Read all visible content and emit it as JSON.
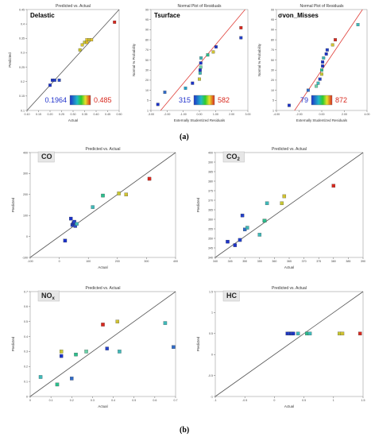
{
  "captions": {
    "a": "(a)",
    "b": "(b)"
  },
  "chart_data": [
    {
      "id": "delastic",
      "type": "scatter",
      "title": "Predicted vs. Actual",
      "xlabel": "Actual",
      "ylabel": "Predicted",
      "label": "Delastic",
      "xlim": [
        0.1,
        0.5
      ],
      "ylim": [
        0.1,
        0.5
      ],
      "xticks": [
        "0.10",
        "0.15",
        "0.20",
        "0.25",
        "0.30",
        "0.35",
        "0.40",
        "0.45",
        "0.50"
      ],
      "yticks": [
        "0.1",
        "0.15",
        "0.2",
        "0.25",
        "0.3",
        "0.35",
        "0.4",
        "0.45"
      ],
      "line": [
        [
          0.1,
          0.1
        ],
        [
          0.5,
          0.5
        ]
      ],
      "colorbar": {
        "min": "0.1964",
        "max": "0.485"
      },
      "x": [
        0.2,
        0.21,
        0.22,
        0.24,
        0.33,
        0.34,
        0.35,
        0.36,
        0.36,
        0.37,
        0.38,
        0.48
      ],
      "y": [
        0.2,
        0.22,
        0.22,
        0.22,
        0.34,
        0.36,
        0.37,
        0.38,
        0.37,
        0.38,
        0.38,
        0.45
      ],
      "c": [
        "#1c33c8",
        "#1c33c8",
        "#2441c8",
        "#2b49c8",
        "#c7c22e",
        "#d8c62c",
        "#c9c832",
        "#e3c72a",
        "#d8b82a",
        "#ccc132",
        "#e0c432",
        "#d8281e"
      ]
    },
    {
      "id": "tsurface",
      "type": "scatter",
      "title": "Normal Plot of Residuals",
      "xlabel": "Externally Studentized Residuals",
      "ylabel": "Normal % Probability",
      "label": "Tsurface",
      "xlim": [
        -3.5,
        3.5
      ],
      "ylim": [
        0,
        100
      ],
      "xticks": [
        "-3.00",
        "-2.00",
        "-1.00",
        "0.00",
        "1.00",
        "2.00",
        "3.00"
      ],
      "yticks": [
        "1",
        "5",
        "10",
        "20",
        "30",
        "50",
        "70",
        "80",
        "90",
        "95",
        "99"
      ],
      "line": [
        [
          -2.8,
          0
        ],
        [
          3.3,
          100
        ]
      ],
      "colorbar": {
        "min": "315",
        "max": "582"
      },
      "x": [
        -3.0,
        -2.5,
        -1.0,
        -0.5,
        0.0,
        0.05,
        0.05,
        0.1,
        0.1,
        0.12,
        0.6,
        1.0,
        1.2,
        3.0,
        3.0
      ],
      "y": [
        6,
        18,
        22,
        27,
        31,
        37,
        40,
        43,
        47,
        52,
        55,
        58,
        63,
        72,
        82
      ],
      "c": [
        "#1c33c8",
        "#2f6bc8",
        "#21a0c8",
        "#1c33c8",
        "#c8c832",
        "#3fb9b9",
        "#1c33c8",
        "#6bd1a8",
        "#1c33c8",
        "#3fb9b9",
        "#2dbd8d",
        "#d0c232",
        "#1c33c8",
        "#2441c8",
        "#d8281e"
      ]
    },
    {
      "id": "vonmises",
      "type": "scatter",
      "title": "Normal Plot of Residuals",
      "xlabel": "Externally Studentized Residuals",
      "ylabel": "Normal % Probability",
      "label": "σvon_Misses",
      "xlim": [
        -5,
        5
      ],
      "ylim": [
        0,
        100
      ],
      "xticks": [
        "-4.00",
        "-2.00",
        "0.00",
        "2.00",
        "4.00"
      ],
      "yticks": [
        "1",
        "5",
        "10",
        "20",
        "30",
        "50",
        "70",
        "80",
        "90",
        "95",
        "99"
      ],
      "line": [
        [
          -3.0,
          0
        ],
        [
          4.5,
          100
        ]
      ],
      "colorbar": {
        "min": "79",
        "max": "872"
      },
      "x": [
        -3.6,
        -1.5,
        -0.6,
        -0.4,
        -0.2,
        0.0,
        0.0,
        0.1,
        0.1,
        0.2,
        0.5,
        0.6,
        1.2,
        1.5,
        4.0
      ],
      "y": [
        5,
        20,
        24,
        27,
        31,
        36,
        40,
        44,
        48,
        52,
        56,
        60,
        65,
        70,
        85
      ],
      "c": [
        "#1c33c8",
        "#2f6bc8",
        "#6bd1a8",
        "#3fb9b9",
        "#2441c8",
        "#c8c832",
        "#2dbd8d",
        "#1c33c8",
        "#1c33c8",
        "#3fb9b9",
        "#1c33c8",
        "#2441c8",
        "#d0c232",
        "#d8281e",
        "#3fb9b9"
      ]
    },
    {
      "id": "co",
      "type": "scatter",
      "title": "Predicted vs. Actual",
      "xlabel": "Actual",
      "ylabel": "Predicted",
      "label": "CO",
      "xlim": [
        -100,
        400
      ],
      "ylim": [
        -100,
        400
      ],
      "xticks": [
        "-100",
        "0",
        "100",
        "200",
        "300",
        "400"
      ],
      "yticks": [
        "-100",
        "0",
        "100",
        "200",
        "300",
        "400"
      ],
      "line": [
        [
          -100,
          -100
        ],
        [
          400,
          400
        ]
      ],
      "x": [
        20,
        40,
        45,
        48,
        50,
        52,
        55,
        60,
        115,
        150,
        205,
        230,
        310
      ],
      "y": [
        -20,
        85,
        55,
        60,
        65,
        70,
        50,
        60,
        140,
        195,
        205,
        200,
        275
      ],
      "c": [
        "#1c33c8",
        "#1c33c8",
        "#2441c8",
        "#2441c8",
        "#1c33c8",
        "#2441c8",
        "#2b49c8",
        "#3fb9b9",
        "#3fb9b9",
        "#2dbd8d",
        "#c8c832",
        "#d0c232",
        "#d8281e"
      ]
    },
    {
      "id": "co2",
      "type": "scatter",
      "title": "Predicted vs. Actual",
      "xlabel": "Actual",
      "ylabel": "Predicted",
      "label": "CO2",
      "xlim": [
        340,
        400
      ],
      "ylim": [
        340,
        400
      ],
      "xticks": [
        "340",
        "345",
        "350",
        "355",
        "360",
        "365",
        "370",
        "375",
        "380",
        "385",
        "390"
      ],
      "yticks": [
        "340",
        "345",
        "350",
        "355",
        "360",
        "365",
        "370",
        "375",
        "380",
        "385",
        "390",
        "400"
      ],
      "line": [
        [
          340,
          340
        ],
        [
          400,
          400
        ]
      ],
      "x": [
        345,
        348,
        350,
        351,
        352,
        353,
        358,
        360,
        360,
        361,
        367,
        368,
        388
      ],
      "y": [
        349,
        347,
        350,
        364,
        356,
        357,
        353,
        361,
        361,
        371,
        371,
        375,
        381
      ],
      "c": [
        "#1c33c8",
        "#1c33c8",
        "#2441c8",
        "#2441c8",
        "#2f6bc8",
        "#3fb9b9",
        "#3fb9b9",
        "#6bd1a8",
        "#2dbd8d",
        "#3fb9b9",
        "#c8c832",
        "#d0c232",
        "#d8281e"
      ]
    },
    {
      "id": "nox",
      "type": "scatter",
      "title": "Predicted vs. Actual",
      "xlabel": "Actual",
      "ylabel": "Predicted",
      "label": "NOx",
      "xlim": [
        0,
        0.7
      ],
      "ylim": [
        0,
        0.7
      ],
      "xticks": [
        "0",
        "0.1",
        "0.2",
        "0.3",
        "0.4",
        "0.5",
        "0.6",
        "0.7"
      ],
      "yticks": [
        "0",
        "0.1",
        "0.2",
        "0.3",
        "0.4",
        "0.5",
        "0.6",
        "0.7"
      ],
      "line": [
        [
          0,
          0
        ],
        [
          0.7,
          0.7
        ]
      ],
      "x": [
        0.05,
        0.13,
        0.15,
        0.15,
        0.2,
        0.22,
        0.27,
        0.35,
        0.37,
        0.42,
        0.43,
        0.65,
        0.69
      ],
      "y": [
        0.13,
        0.08,
        0.3,
        0.27,
        0.12,
        0.28,
        0.3,
        0.48,
        0.32,
        0.5,
        0.3,
        0.49,
        0.33
      ],
      "c": [
        "#3fb9b9",
        "#2dbd8d",
        "#c8c832",
        "#1c33c8",
        "#2f6bc8",
        "#2dbd8d",
        "#6bd1a8",
        "#d8281e",
        "#2441c8",
        "#d0c232",
        "#3fb9b9",
        "#3fb9b9",
        "#2f6bc8"
      ]
    },
    {
      "id": "hc",
      "type": "scatter",
      "title": "Predicted vs. Actual",
      "xlabel": "Actual",
      "ylabel": "Predicted",
      "label": "HC",
      "xlim": [
        -1,
        1.5
      ],
      "ylim": [
        -1,
        1.5
      ],
      "xticks": [
        "-1",
        "-0.5",
        "0",
        "0.5",
        "1",
        "1.5"
      ],
      "yticks": [
        "-1",
        "-0.5",
        "0",
        "0.5",
        "1",
        "1.5"
      ],
      "line": [
        [
          -1,
          -1
        ],
        [
          1.5,
          1.5
        ]
      ],
      "x": [
        0.22,
        0.25,
        0.28,
        0.3,
        0.32,
        0.4,
        0.55,
        0.6,
        1.1,
        1.15,
        1.45
      ],
      "y": [
        0.5,
        0.5,
        0.5,
        0.5,
        0.5,
        0.5,
        0.5,
        0.5,
        0.5,
        0.5,
        0.5
      ],
      "c": [
        "#1c33c8",
        "#2441c8",
        "#1c33c8",
        "#2b49c8",
        "#1c33c8",
        "#3fb9b9",
        "#2dbd8d",
        "#3fb9b9",
        "#c8c832",
        "#d0c232",
        "#d8281e"
      ]
    }
  ]
}
